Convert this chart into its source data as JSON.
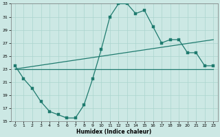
{
  "xlabel": "Humidex (Indice chaleur)",
  "bg_color": "#cce8e4",
  "grid_color": "#aad4ce",
  "line_color": "#1e7a6e",
  "xlim": [
    -0.5,
    23.5
  ],
  "ylim": [
    15,
    33
  ],
  "xticks": [
    0,
    1,
    2,
    3,
    4,
    5,
    6,
    7,
    8,
    9,
    10,
    11,
    12,
    13,
    14,
    15,
    16,
    17,
    18,
    19,
    20,
    21,
    22,
    23
  ],
  "yticks": [
    15,
    17,
    19,
    21,
    23,
    25,
    27,
    29,
    31,
    33
  ],
  "line1_x": [
    0,
    1,
    2,
    3,
    4,
    5,
    6,
    7,
    8,
    9,
    10,
    11,
    12,
    13,
    14,
    15,
    16,
    17,
    18,
    19,
    20,
    21,
    22,
    23
  ],
  "line1_y": [
    23.5,
    21.5,
    20.0,
    18.0,
    16.5,
    16.0,
    15.5,
    15.5,
    17.5,
    21.5,
    26.0,
    31.0,
    33.0,
    33.0,
    31.5,
    32.0,
    29.5,
    27.0,
    27.5,
    27.5,
    25.5,
    25.5,
    23.5,
    23.5
  ],
  "line2_x": [
    0,
    23
  ],
  "line2_y": [
    23.0,
    27.5
  ],
  "line3_x": [
    0,
    23
  ],
  "line3_y": [
    23.0,
    23.0
  ]
}
